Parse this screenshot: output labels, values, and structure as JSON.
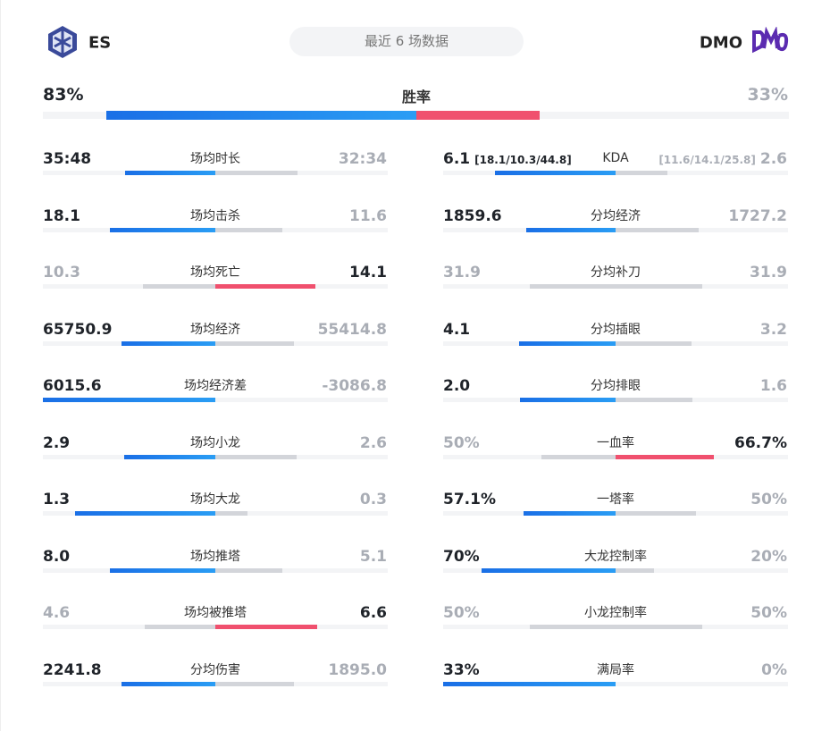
{
  "header": {
    "left_team": "ES",
    "title": "最近 6 场数据",
    "right_team": "DMO"
  },
  "winrate": {
    "name": "胜率",
    "left": {
      "value": 83,
      "label": "83%"
    },
    "right": {
      "value": 33,
      "label": "33%"
    }
  },
  "stats": {
    "left": [
      {
        "name": "场均时长",
        "left": {
          "value": 35.8,
          "label": "35:48"
        },
        "right": {
          "value": 32.567,
          "label": "32:34"
        }
      },
      {
        "name": "场均击杀",
        "left": {
          "value": 18.1,
          "label": "18.1"
        },
        "right": {
          "value": 11.6,
          "label": "11.6"
        }
      },
      {
        "name": "场均死亡",
        "left": {
          "value": 10.3,
          "label": "10.3"
        },
        "right": {
          "value": 14.1,
          "label": "14.1"
        }
      },
      {
        "name": "场均经济",
        "left": {
          "value": 65750.9,
          "label": "65750.9"
        },
        "right": {
          "value": 55414.8,
          "label": "55414.8"
        }
      },
      {
        "name": "场均经济差",
        "left": {
          "value": 6015.6,
          "label": "6015.6"
        },
        "right": {
          "value": -3086.8,
          "label": "-3086.8"
        }
      },
      {
        "name": "场均小龙",
        "left": {
          "value": 2.9,
          "label": "2.9"
        },
        "right": {
          "value": 2.6,
          "label": "2.6"
        }
      },
      {
        "name": "场均大龙",
        "left": {
          "value": 1.3,
          "label": "1.3"
        },
        "right": {
          "value": 0.3,
          "label": "0.3"
        }
      },
      {
        "name": "场均推塔",
        "left": {
          "value": 8.0,
          "label": "8.0"
        },
        "right": {
          "value": 5.1,
          "label": "5.1"
        }
      },
      {
        "name": "场均被推塔",
        "left": {
          "value": 4.6,
          "label": "4.6"
        },
        "right": {
          "value": 6.6,
          "label": "6.6"
        }
      },
      {
        "name": "分均伤害",
        "left": {
          "value": 2241.8,
          "label": "2241.8"
        },
        "right": {
          "value": 1895.0,
          "label": "1895.0"
        }
      }
    ],
    "right": [
      {
        "name": "KDA",
        "left": {
          "value": 6.1,
          "label": "6.1",
          "detail": "[18.1/10.3/44.8]"
        },
        "right": {
          "value": 2.6,
          "label": "2.6",
          "detail": "[11.6/14.1/25.8]"
        }
      },
      {
        "name": "分均经济",
        "left": {
          "value": 1859.6,
          "label": "1859.6"
        },
        "right": {
          "value": 1727.2,
          "label": "1727.2"
        }
      },
      {
        "name": "分均补刀",
        "left": {
          "value": 31.9,
          "label": "31.9"
        },
        "right": {
          "value": 31.9,
          "label": "31.9"
        }
      },
      {
        "name": "分均插眼",
        "left": {
          "value": 4.1,
          "label": "4.1"
        },
        "right": {
          "value": 3.2,
          "label": "3.2"
        }
      },
      {
        "name": "分均排眼",
        "left": {
          "value": 2.0,
          "label": "2.0"
        },
        "right": {
          "value": 1.6,
          "label": "1.6"
        }
      },
      {
        "name": "一血率",
        "left": {
          "value": 50,
          "label": "50%"
        },
        "right": {
          "value": 66.7,
          "label": "66.7%"
        }
      },
      {
        "name": "一塔率",
        "left": {
          "value": 57.1,
          "label": "57.1%"
        },
        "right": {
          "value": 50,
          "label": "50%"
        }
      },
      {
        "name": "大龙控制率",
        "left": {
          "value": 70,
          "label": "70%"
        },
        "right": {
          "value": 20,
          "label": "20%"
        }
      },
      {
        "name": "小龙控制率",
        "left": {
          "value": 50,
          "label": "50%"
        },
        "right": {
          "value": 50,
          "label": "50%"
        }
      },
      {
        "name": "满局率",
        "left": {
          "value": 33,
          "label": "33%"
        },
        "right": {
          "value": 0,
          "label": "0%"
        }
      }
    ]
  }
}
